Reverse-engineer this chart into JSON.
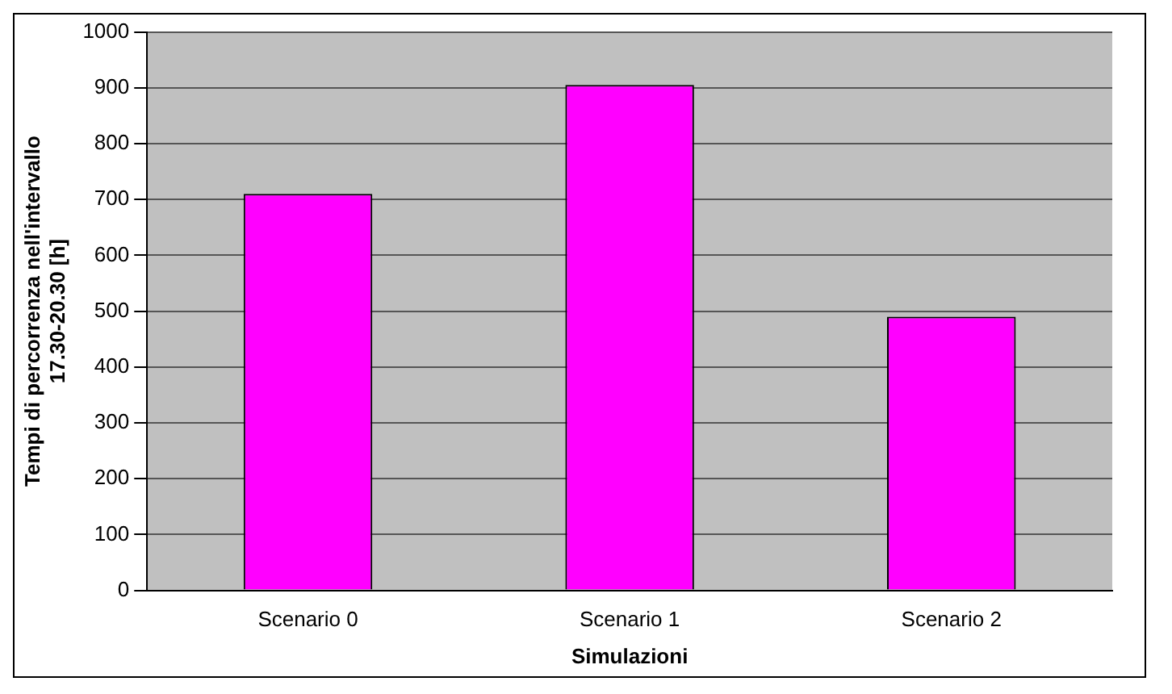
{
  "chart_data": {
    "type": "bar",
    "xlabel": "Simulazioni",
    "ylabel": "Tempi di percorrenza nell'intervallo 17.30-20.30 [h]",
    "categories": [
      "Scenario 0",
      "Scenario 1",
      "Scenario 2"
    ],
    "values": [
      710,
      905,
      490
    ],
    "color": "#ff00ff",
    "ylim": [
      0,
      1000
    ],
    "yticks": [
      0,
      100,
      200,
      300,
      400,
      500,
      600,
      700,
      800,
      900,
      1000
    ],
    "grid": "y",
    "legend": false
  }
}
